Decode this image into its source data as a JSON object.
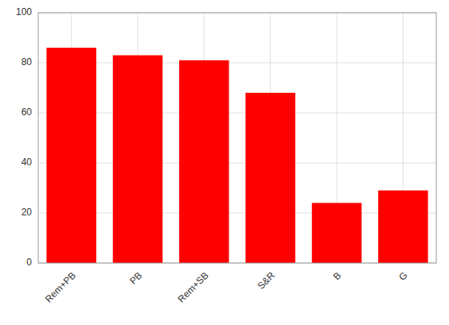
{
  "chart_data": {
    "type": "bar",
    "categories": [
      "Rem+PB",
      "PB",
      "Rem+SB",
      "S&R",
      "B",
      "G"
    ],
    "values": [
      86,
      83,
      81,
      68,
      24,
      29
    ],
    "color": "#ff0000",
    "ylim": [
      0,
      100
    ],
    "yticks": [
      0,
      20,
      40,
      60,
      80,
      100
    ],
    "grid": true
  }
}
